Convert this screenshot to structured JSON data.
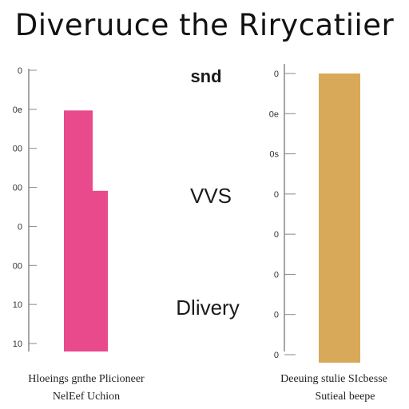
{
  "chart_data": {
    "type": "bar",
    "title": "Diveruuce the Rirycatiier",
    "center_labels": [
      "snd",
      "VVS",
      "Dlivery"
    ],
    "colors": {
      "left": "#e84a8c",
      "right": "#d9a95a",
      "axis": "#888888"
    },
    "panels": [
      {
        "xlabel_lines": [
          "Hloeings gnthe Plicioneer",
          "NelEef Uchion"
        ],
        "ticks": [
          "0",
          "0e",
          "00",
          "00",
          "0",
          "00",
          "10",
          "10"
        ],
        "ylim": [
          0,
          7
        ],
        "bars": [
          {
            "values": [
              6,
              4
            ]
          }
        ]
      },
      {
        "xlabel_lines": [
          "Deeuing stulie SIcbesse",
          "Sutieal beepe"
        ],
        "ticks": [
          "0",
          "0e",
          "0s",
          "0",
          "0",
          "0",
          "0",
          "0"
        ],
        "ylim": [
          0,
          7
        ],
        "bars": [
          {
            "values": [
              7
            ]
          }
        ]
      }
    ]
  }
}
